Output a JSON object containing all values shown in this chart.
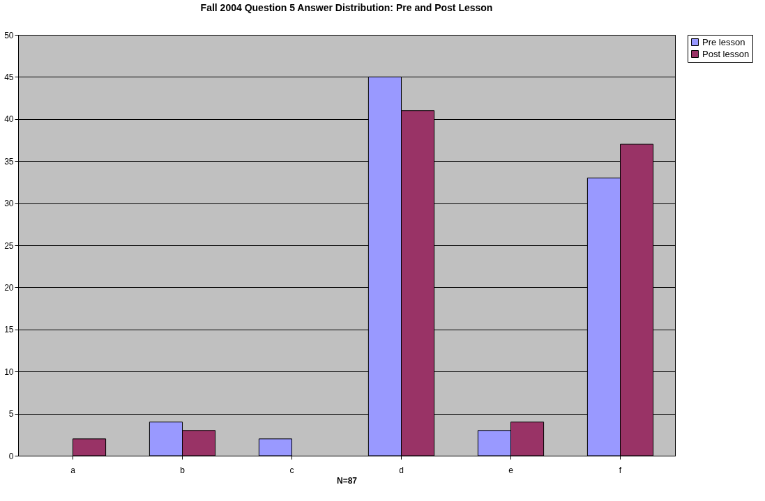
{
  "chart_data": {
    "type": "bar",
    "title": "Fall 2004 Question 5 Answer Distribution: Pre and Post Lesson",
    "xlabel": "N=87",
    "categories": [
      "a",
      "b",
      "c",
      "d",
      "e",
      "f"
    ],
    "series": [
      {
        "name": "Pre lesson",
        "color": "#9999ff",
        "values": [
          0,
          4,
          2,
          45,
          3,
          33
        ]
      },
      {
        "name": "Post lesson",
        "color": "#993366",
        "values": [
          2,
          3,
          0,
          41,
          4,
          37
        ]
      }
    ],
    "ylim": [
      0,
      50
    ],
    "yticks": [
      0,
      5,
      10,
      15,
      20,
      25,
      30,
      35,
      40,
      45,
      50
    ],
    "grid": "y",
    "legend": "right"
  }
}
